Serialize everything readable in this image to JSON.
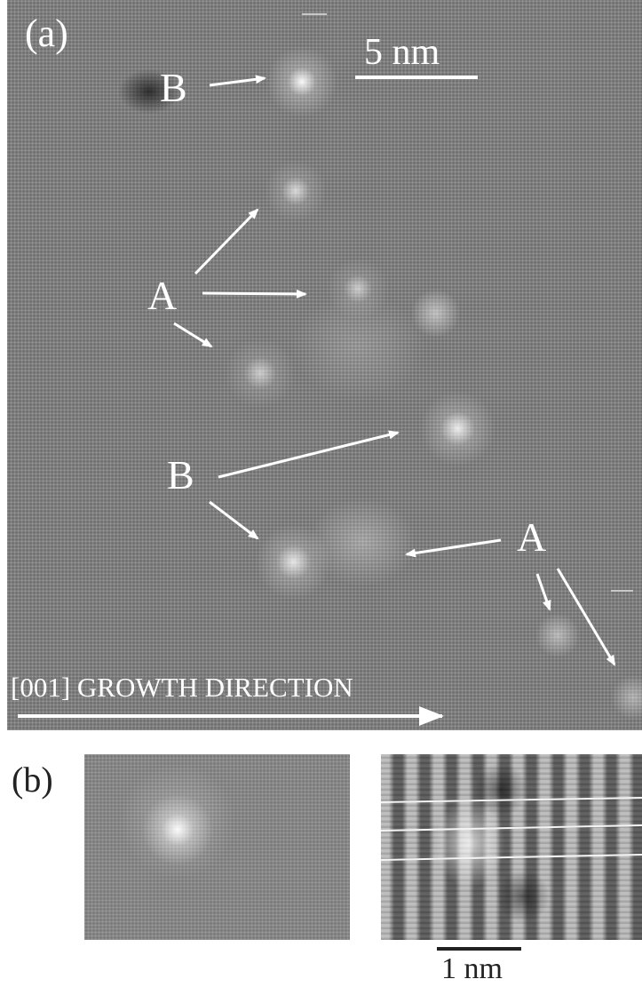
{
  "figure": {
    "panel_a": {
      "label": "(a)",
      "scale_bar": "5 nm",
      "markers": {
        "b_top": "B",
        "a_left": "A",
        "b_mid": "B",
        "a_right": "A"
      },
      "direction_label": "[001] GROWTH DIRECTION"
    },
    "panel_b": {
      "label": "(b)",
      "scale_bar": "1 nm"
    }
  }
}
